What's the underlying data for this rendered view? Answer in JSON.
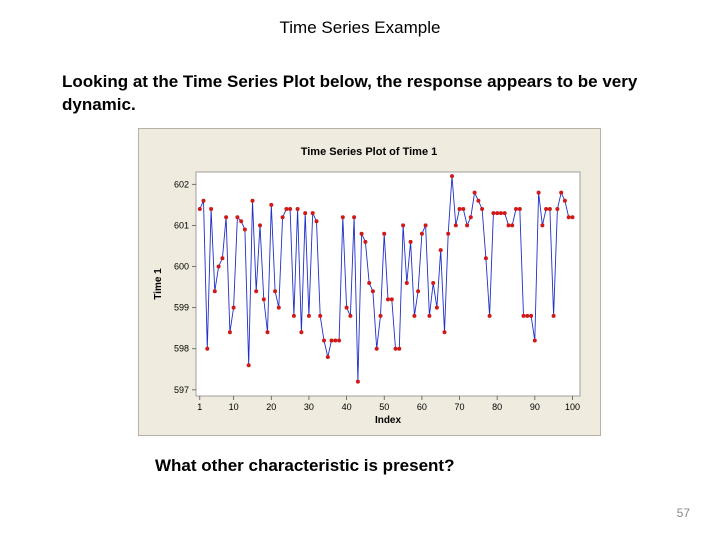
{
  "slide": {
    "title": "Time Series Example",
    "intro": "Looking at the Time Series Plot below, the response appears to be very dynamic.",
    "question": "What other characteristic is present?",
    "page_number": "57"
  },
  "chart_data": {
    "type": "line",
    "title": "Time Series Plot of Time 1",
    "xlabel": "Index",
    "ylabel": "Time 1",
    "xlim": [
      0,
      102
    ],
    "ylim": [
      596.85,
      602.3
    ],
    "x_ticks": [
      1,
      10,
      20,
      30,
      40,
      50,
      60,
      70,
      80,
      90,
      100
    ],
    "y_ticks": [
      597,
      598,
      599,
      600,
      601,
      602
    ],
    "grid": false,
    "line_color": "#2030c8",
    "marker_color": "#d01a1a",
    "series": [
      {
        "x": [
          1,
          2,
          3,
          4,
          5,
          6,
          7,
          8,
          9,
          10,
          11,
          12,
          13,
          14,
          15,
          16,
          17,
          18,
          19,
          20,
          21,
          22,
          23,
          24,
          25,
          26,
          27,
          28,
          29,
          30,
          31,
          32,
          33,
          34,
          35,
          36,
          37,
          38,
          39,
          40,
          41,
          42,
          43,
          44,
          45,
          46,
          47,
          48,
          49,
          50,
          51,
          52,
          53,
          54,
          55,
          56,
          57,
          58,
          59,
          60,
          61,
          62,
          63,
          64,
          65,
          66,
          67,
          68,
          69,
          70,
          71,
          72,
          73,
          74,
          75,
          76,
          77,
          78,
          79,
          80,
          81,
          82,
          83,
          84,
          85,
          86,
          87,
          88,
          89,
          90,
          91,
          92,
          93,
          94,
          95,
          96,
          97,
          98,
          99,
          100
        ],
        "values": [
          601.4,
          601.6,
          598.0,
          601.4,
          599.4,
          600.0,
          600.2,
          601.2,
          598.4,
          599.0,
          601.2,
          601.1,
          600.9,
          597.6,
          601.6,
          599.4,
          601.0,
          599.2,
          598.4,
          601.5,
          599.4,
          599.0,
          601.2,
          601.4,
          601.4,
          598.8,
          601.4,
          598.4,
          601.3,
          598.8,
          601.3,
          601.1,
          598.8,
          598.2,
          597.8,
          598.2,
          598.2,
          598.2,
          601.2,
          599.0,
          598.8,
          601.2,
          597.2,
          600.8,
          600.6,
          599.6,
          599.4,
          598.0,
          598.8,
          600.8,
          599.2,
          599.2,
          598.0,
          598.0,
          601.0,
          599.6,
          600.6,
          598.8,
          599.4,
          600.8,
          601.0,
          598.8,
          599.6,
          599.0,
          600.4,
          598.4,
          600.8,
          602.2,
          601.0,
          601.4,
          601.4,
          601.0,
          601.2,
          601.8,
          601.6,
          601.4,
          600.2,
          598.8,
          601.3,
          601.3,
          601.3,
          601.3,
          601.0,
          601.0,
          601.4,
          601.4,
          598.8,
          598.8,
          598.8,
          598.2,
          601.8,
          601.0,
          601.4,
          601.4,
          598.8,
          601.4,
          601.8,
          601.6,
          601.2,
          601.2
        ]
      }
    ]
  }
}
